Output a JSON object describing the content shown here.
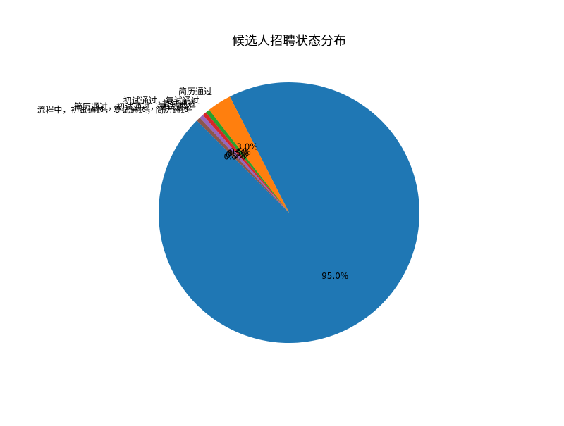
{
  "chart_data": {
    "type": "pie",
    "title": "候选人招聘状态分布",
    "slices": [
      {
        "label": "",
        "value": 95.0,
        "pct_text": "95.0%",
        "color": "#1f77b4"
      },
      {
        "label": "简历通过",
        "value": 3.0,
        "pct_text": "3.0%",
        "color": "#ff7f0e"
      },
      {
        "label": "初试通过，复试通过",
        "value": 0.5,
        "pct_text": "0.5%",
        "color": "#2ca02c"
      },
      {
        "label": "复试通过",
        "value": 0.5,
        "pct_text": "0.5%",
        "color": "#d62728"
      },
      {
        "label": "简历通过，初试通过，复试通过",
        "value": 0.5,
        "pct_text": "0.5%",
        "color": "#9467bd"
      },
      {
        "label": "流程中，初试通过，复试通过，简历通过",
        "value": 0.5,
        "pct_text": "0.5%",
        "color": "#8c564b"
      }
    ],
    "start_angle_deg": 135,
    "direction": "counterclockwise"
  }
}
